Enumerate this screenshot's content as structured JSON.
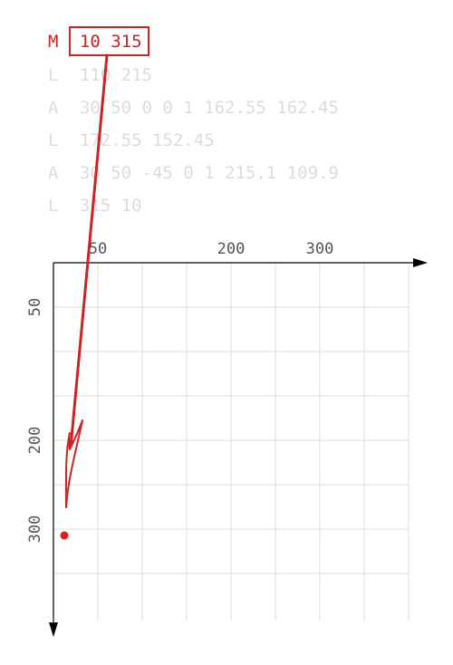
{
  "path_commands": [
    {
      "op": "M",
      "args": "10 315",
      "active": true
    },
    {
      "op": "L",
      "args": "110 215",
      "active": false
    },
    {
      "op": "A",
      "args": "30 50 0 0 1 162.55 162.45",
      "active": false
    },
    {
      "op": "L",
      "args": "172.55 152.45",
      "active": false
    },
    {
      "op": "A",
      "args": "30 50 -45 0 1 215.1 109.9",
      "active": false
    },
    {
      "op": "L",
      "args": "315 10",
      "active": false
    }
  ],
  "coordinate_grid": {
    "x_tick_labels": [
      "50",
      "200",
      "300"
    ],
    "y_tick_labels": [
      "50",
      "200",
      "300"
    ]
  },
  "current_point": {
    "x": 10,
    "y": 315
  },
  "colors": {
    "accent": "#d42020",
    "muted_text": "#dcdcdc",
    "grid": "#dddddd",
    "axis": "#000000"
  }
}
